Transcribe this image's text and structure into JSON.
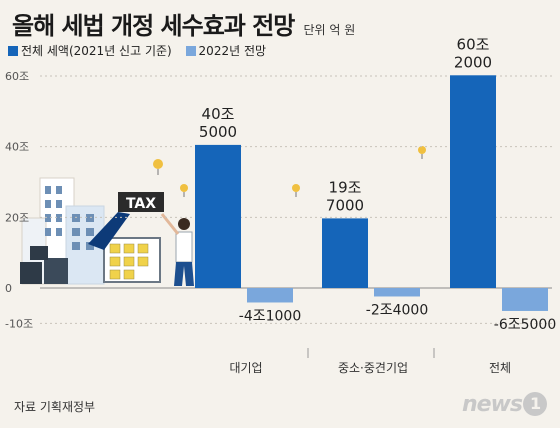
{
  "title": "올해 세법 개정 세수효과 전망",
  "unit": "단위 억 원",
  "source": "자료 기획재정부",
  "logo": {
    "text": "news",
    "mark": "1"
  },
  "colors": {
    "series1": "#1565b9",
    "series2": "#7aa7dc"
  },
  "chart_data": {
    "type": "bar",
    "categories": [
      "대기업",
      "중소·중견기업",
      "전체"
    ],
    "series": [
      {
        "name": "전체 세액(2021년 신고 기준)",
        "values": [
          405000,
          197000,
          602000
        ],
        "labels": [
          "40조\n5000",
          "19조\n7000",
          "60조\n2000"
        ]
      },
      {
        "name": "2022년 전망",
        "values": [
          -41000,
          -24000,
          -65000
        ],
        "labels": [
          "-4조1000",
          "-2조4000",
          "-6조5000"
        ]
      }
    ],
    "yticks": [
      {
        "value": 600000,
        "label": "60조"
      },
      {
        "value": 400000,
        "label": "40조"
      },
      {
        "value": 200000,
        "label": "20조"
      },
      {
        "value": 0,
        "label": "0"
      },
      {
        "value": -100000,
        "label": "-10조"
      }
    ],
    "ylim": [
      -100000,
      600000
    ],
    "grid": "horizontal-dashed",
    "legend": "top-left"
  }
}
